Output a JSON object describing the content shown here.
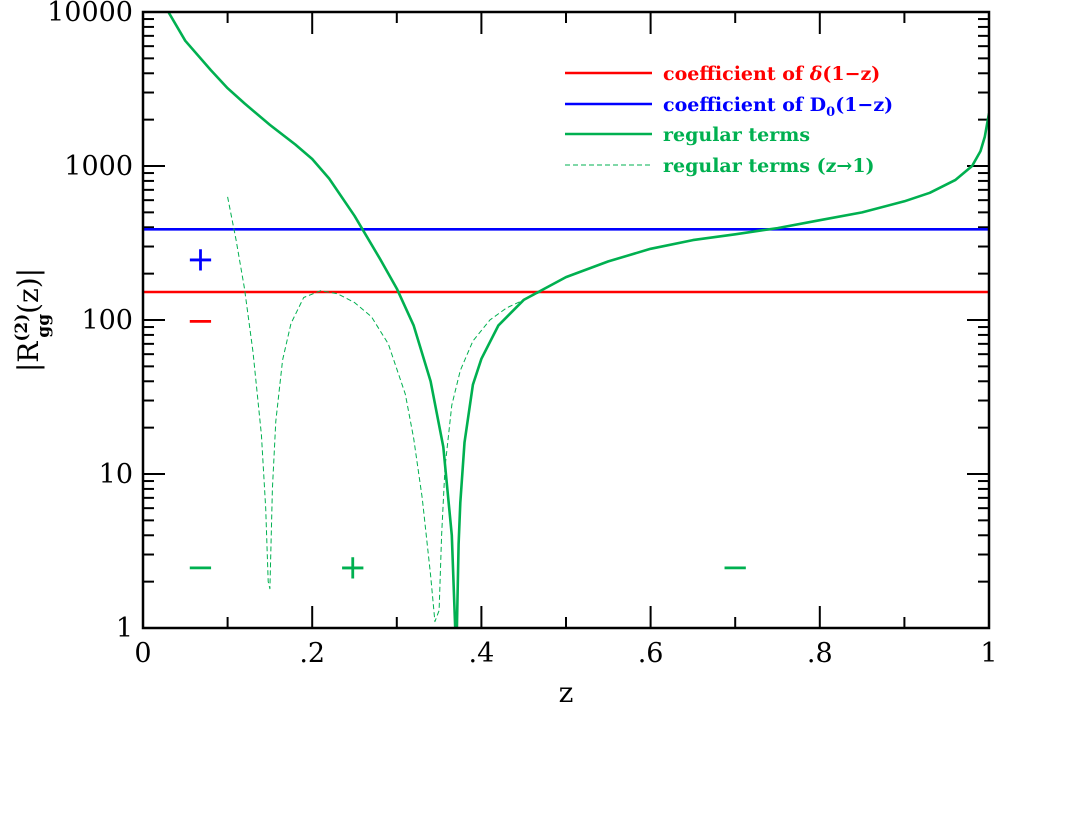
{
  "chart_data": {
    "type": "line",
    "xlabel": "z",
    "ylabel": {
      "prefix": "|R",
      "sup": "(2)",
      "sub": "gg",
      "suffix": "(z)|"
    },
    "xlim": [
      0,
      1
    ],
    "ylim": [
      1,
      10000
    ],
    "yscale": "log",
    "x_tick_labels": [
      {
        "value": 0,
        "label": "0"
      },
      {
        "value": 0.2,
        "label": ".2"
      },
      {
        "value": 0.4,
        "label": ".4"
      },
      {
        "value": 0.6,
        "label": ".6"
      },
      {
        "value": 0.8,
        "label": ".8"
      },
      {
        "value": 1,
        "label": "1"
      }
    ],
    "y_tick_labels": [
      {
        "value": 1,
        "label": "1"
      },
      {
        "value": 10,
        "label": "10"
      },
      {
        "value": 100,
        "label": "100"
      },
      {
        "value": 1000,
        "label": "1000"
      },
      {
        "value": 10000,
        "label": "10000"
      }
    ],
    "legend_placement": "top-right",
    "series": [
      {
        "name": "coefficient of δ(1−z)",
        "legend_label": {
          "text": "coefficient of ",
          "italic": "δ",
          "suffix": "(1−z)"
        },
        "color": "#ff0000",
        "style": "solid",
        "x": [
          0,
          1
        ],
        "y": [
          152,
          152
        ]
      },
      {
        "name": "coefficient of D0(1−z)",
        "legend_label": {
          "text": "coefficient of D",
          "sub": "0",
          "suffix": "(1−z)"
        },
        "color": "#0000ff",
        "style": "solid",
        "x": [
          0,
          1
        ],
        "y": [
          388,
          388
        ]
      },
      {
        "name": "regular terms",
        "legend_label": {
          "text": "regular terms"
        },
        "color": "#00b050",
        "style": "solid",
        "x": [
          0.03,
          0.05,
          0.08,
          0.1,
          0.12,
          0.15,
          0.18,
          0.2,
          0.22,
          0.25,
          0.28,
          0.3,
          0.32,
          0.34,
          0.355,
          0.365,
          0.369,
          0.371,
          0.373,
          0.375,
          0.38,
          0.39,
          0.4,
          0.42,
          0.45,
          0.5,
          0.55,
          0.6,
          0.65,
          0.7,
          0.75,
          0.8,
          0.85,
          0.9,
          0.93,
          0.96,
          0.98,
          0.99,
          0.995,
          1.0
        ],
        "y": [
          10000,
          6500,
          4200,
          3200,
          2550,
          1850,
          1380,
          1110,
          830,
          475,
          250,
          160,
          92,
          40,
          15,
          4,
          1,
          1,
          3.5,
          6.5,
          16,
          38,
          56,
          92,
          135,
          190,
          240,
          290,
          330,
          360,
          395,
          445,
          500,
          590,
          670,
          810,
          1000,
          1250,
          1550,
          2200
        ]
      },
      {
        "name": "regular terms (z→1)",
        "legend_label": {
          "text": "regular terms (z→1)"
        },
        "color": "#00b050",
        "style": "dashed",
        "x": [
          0.1,
          0.11,
          0.12,
          0.13,
          0.14,
          0.145,
          0.148,
          0.15,
          0.153,
          0.157,
          0.165,
          0.175,
          0.19,
          0.21,
          0.23,
          0.25,
          0.27,
          0.29,
          0.31,
          0.32,
          0.33,
          0.34,
          0.345,
          0.35,
          0.353,
          0.357,
          0.365,
          0.375,
          0.39,
          0.41,
          0.43,
          0.45,
          0.47
        ],
        "y": [
          630,
          330,
          160,
          62,
          18,
          6,
          2,
          1.8,
          8,
          22,
          55,
          95,
          140,
          155,
          148,
          130,
          105,
          70,
          33,
          17,
          7,
          2.2,
          1.1,
          1.3,
          4,
          11,
          28,
          47,
          73,
          100,
          120,
          135,
          152
        ]
      }
    ],
    "annotations": [
      {
        "text": "+",
        "x": 0.068,
        "y": 250,
        "color": "#0000ff"
      },
      {
        "text": "−",
        "x": 0.068,
        "y": 100,
        "color": "#ff0000"
      },
      {
        "text": "−",
        "x": 0.068,
        "y": 2.5,
        "color": "#00b050"
      },
      {
        "text": "+",
        "x": 0.248,
        "y": 2.5,
        "color": "#00b050"
      },
      {
        "text": "−",
        "x": 0.7,
        "y": 2.5,
        "color": "#00b050"
      }
    ]
  }
}
